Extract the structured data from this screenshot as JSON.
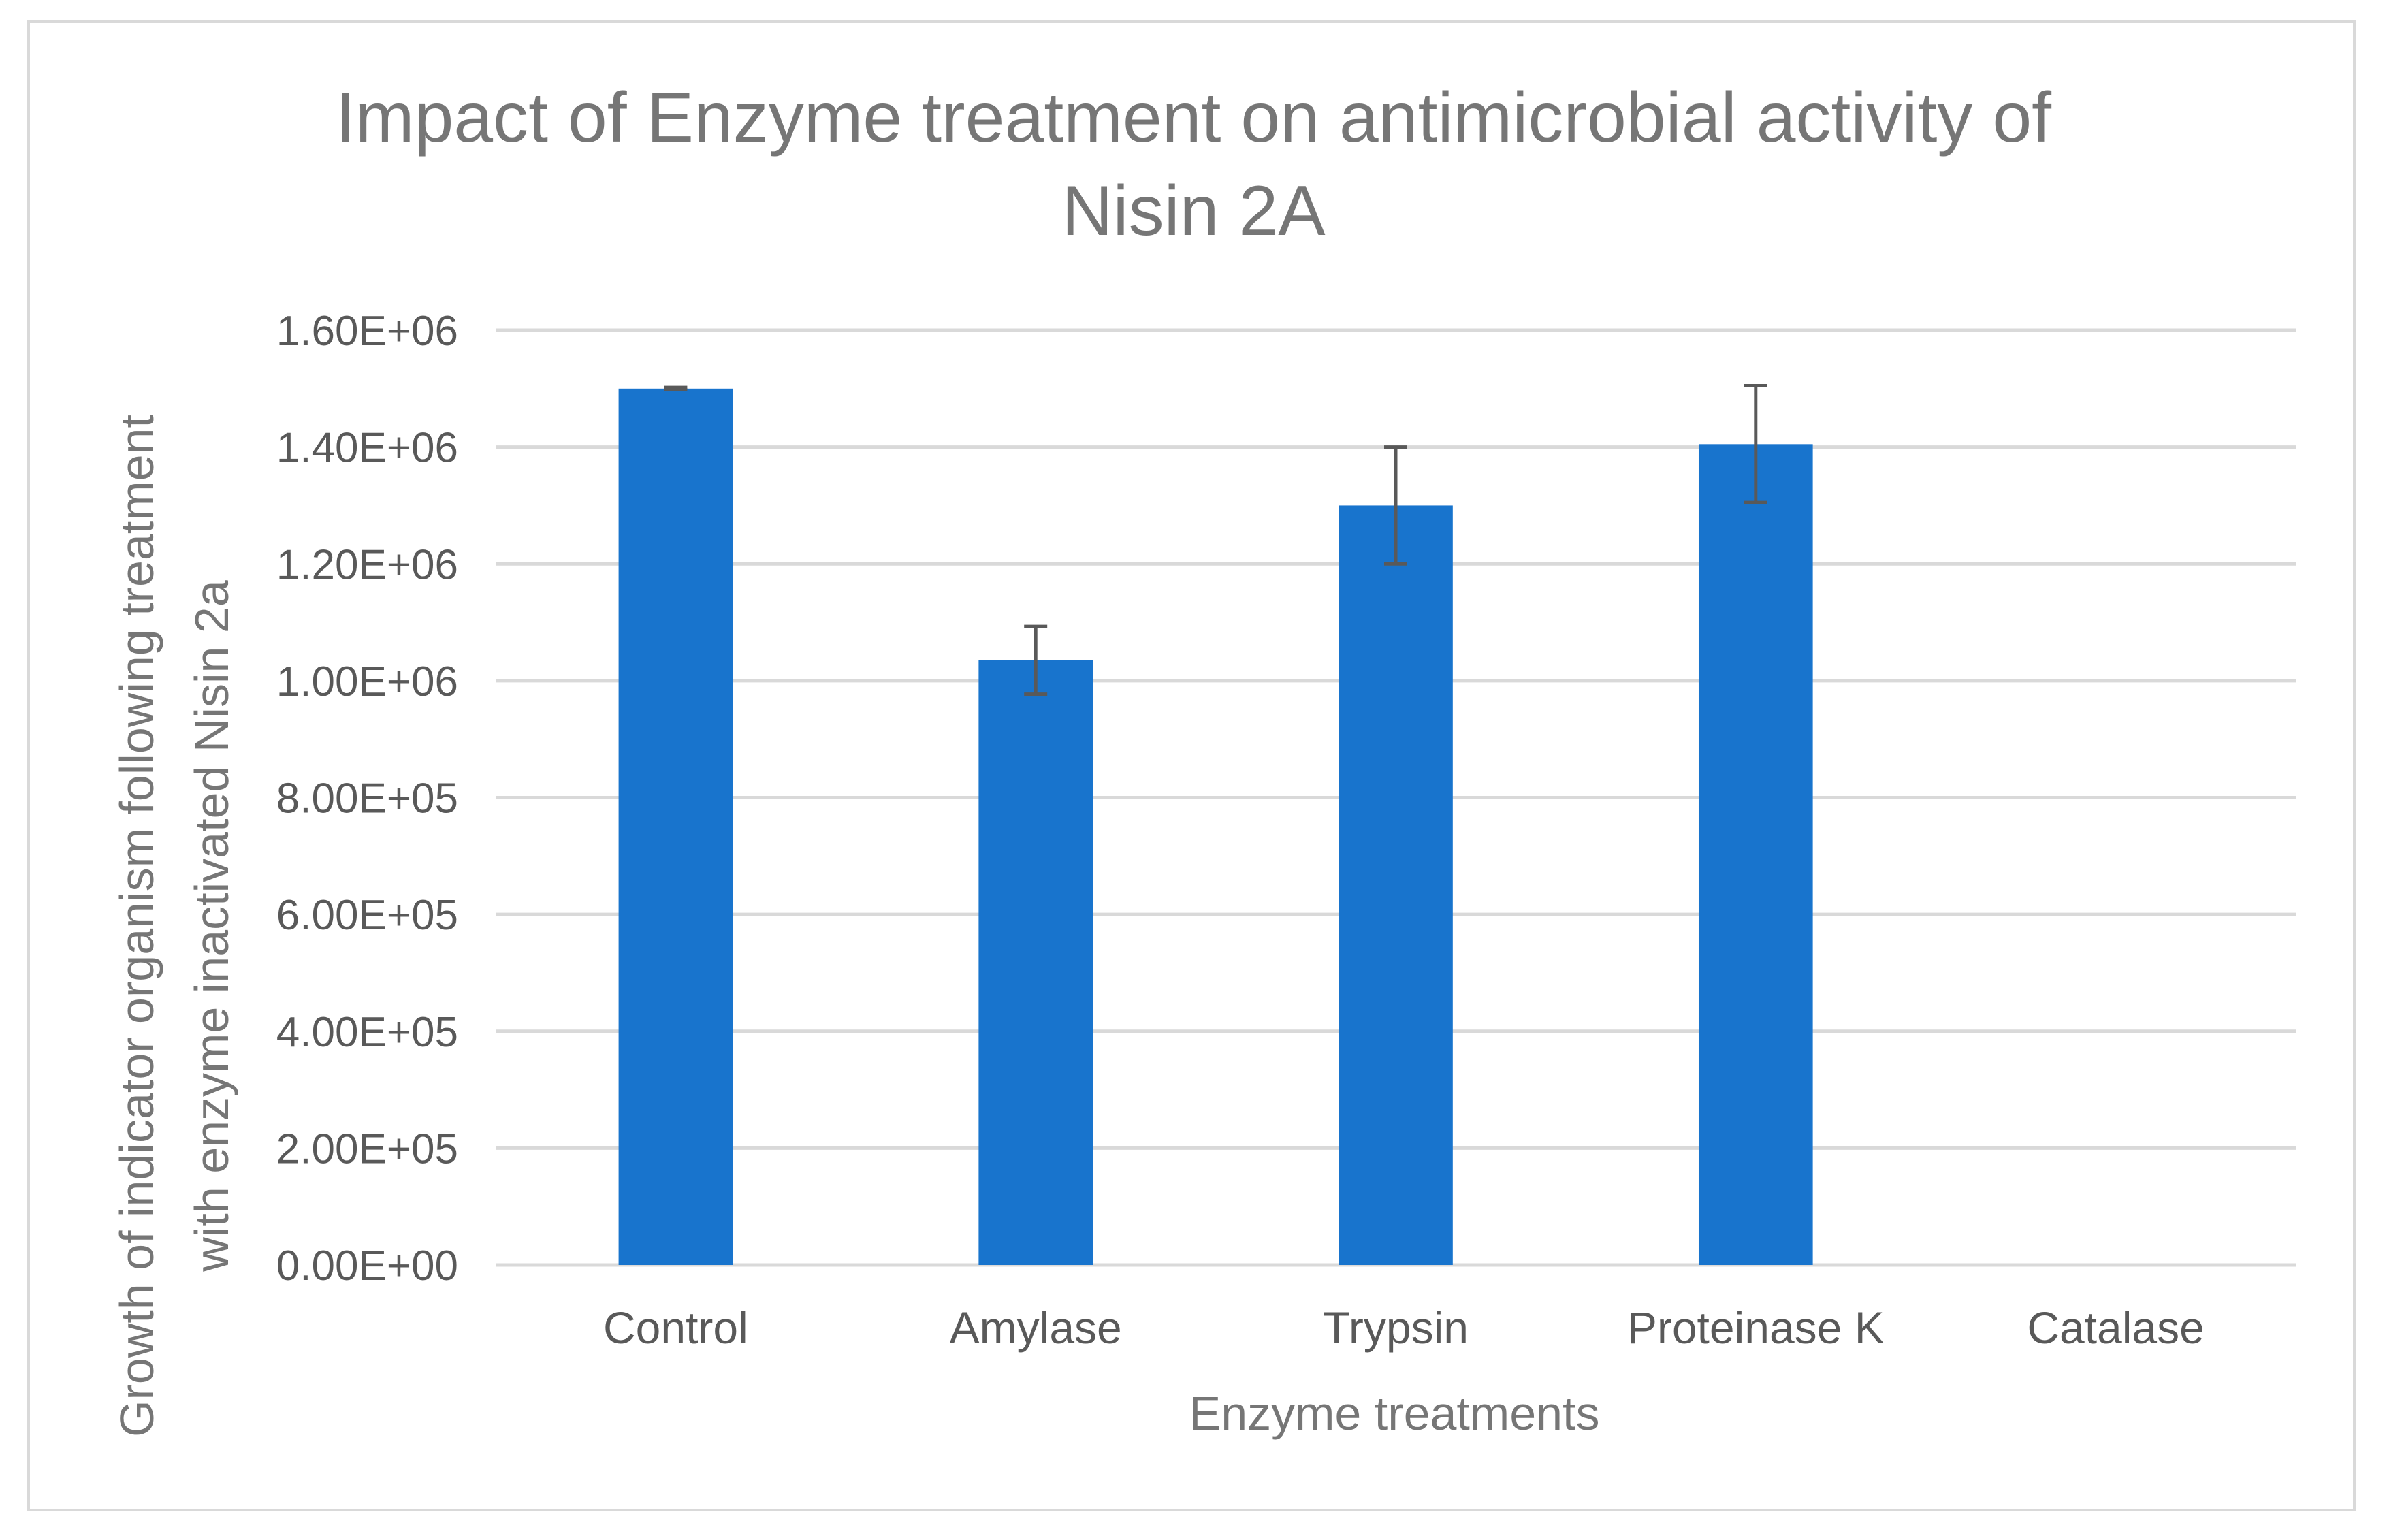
{
  "chart_data": {
    "type": "bar",
    "title": "Impact of Enzyme treatment on antimicrobial activity of Nisin 2A",
    "title_lines": [
      "Impact of Enzyme treatment on antimicrobial activity of",
      "Nisin 2A"
    ],
    "xlabel": "Enzyme treatments",
    "ylabel": "Growth of indicator organism following treatment with enzyme inactivated Nisin 2a",
    "ylabel_lines": [
      "Growth of indicator organism following treatment",
      "with enzyme inactivated Nisin 2a"
    ],
    "categories": [
      "Control",
      "Amylase",
      "Trypsin",
      "Proteinase K",
      "Catalase"
    ],
    "values": [
      1500000,
      1035000,
      1300000,
      1405000,
      0
    ],
    "errors": [
      2000,
      58000,
      100000,
      100000,
      0
    ],
    "ylim": [
      0,
      1600000
    ],
    "yticks": [
      0,
      200000,
      400000,
      600000,
      800000,
      1000000,
      1200000,
      1400000,
      1600000
    ],
    "ytick_labels": [
      "0.00E+00",
      "2.00E+05",
      "4.00E+05",
      "6.00E+05",
      "8.00E+05",
      "1.00E+06",
      "1.20E+06",
      "1.40E+06",
      "1.60E+06"
    ],
    "grid": true,
    "legend": "none",
    "bar_color": "#1874CD",
    "error_color": "#595959",
    "grid_color": "#d9d9d9"
  }
}
